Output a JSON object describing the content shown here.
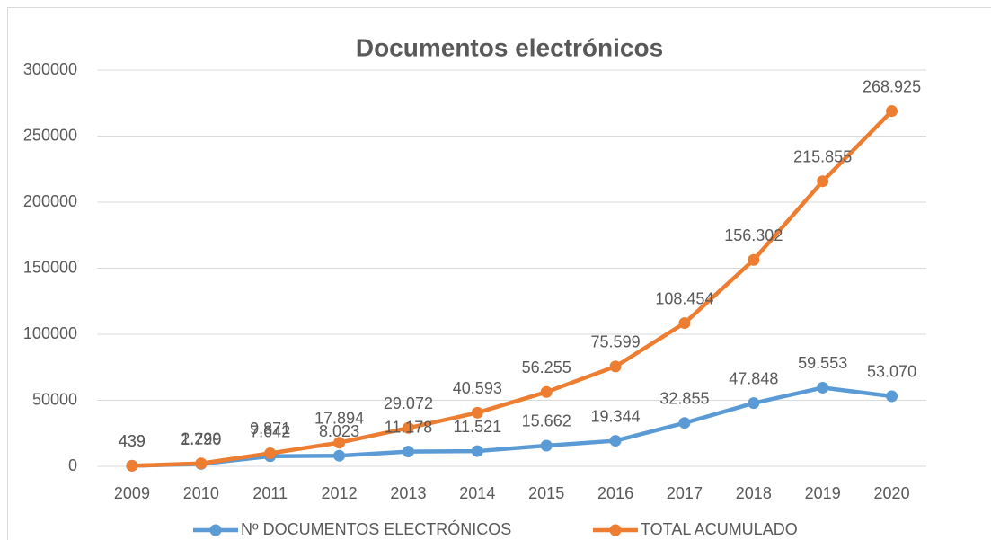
{
  "chart_data": {
    "type": "line",
    "title": "Documentos electrónicos",
    "categories": [
      "2009",
      "2010",
      "2011",
      "2012",
      "2013",
      "2014",
      "2015",
      "2016",
      "2017",
      "2018",
      "2019",
      "2020"
    ],
    "series": [
      {
        "name": "Nº DOCUMENTOS ELECTRÓNICOS",
        "color": "#5b9bd5",
        "values": [
          439,
          1790,
          7642,
          8023,
          11178,
          11521,
          15662,
          19344,
          32855,
          47848,
          59553,
          53070
        ],
        "value_labels": [
          "439",
          "1.790",
          "7.642",
          "8.023",
          "11.178",
          "11.521",
          "15.662",
          "19.344",
          "32.855",
          "47.848",
          "59.553",
          "53.070"
        ]
      },
      {
        "name": "TOTAL ACUMULADO",
        "color": "#ed7d31",
        "values": [
          439,
          2229,
          9871,
          17894,
          29072,
          40593,
          56255,
          75599,
          108454,
          156302,
          215855,
          268925
        ],
        "value_labels": [
          "439",
          "2.229",
          "9.871",
          "17.894",
          "29.072",
          "40.593",
          "56.255",
          "75.599",
          "108.454",
          "156.302",
          "215.855",
          "268.925"
        ]
      }
    ],
    "ylim": [
      0,
      300000
    ],
    "yticks": [
      0,
      50000,
      100000,
      150000,
      200000,
      250000,
      300000
    ],
    "grid": true,
    "legend": "bottom"
  }
}
